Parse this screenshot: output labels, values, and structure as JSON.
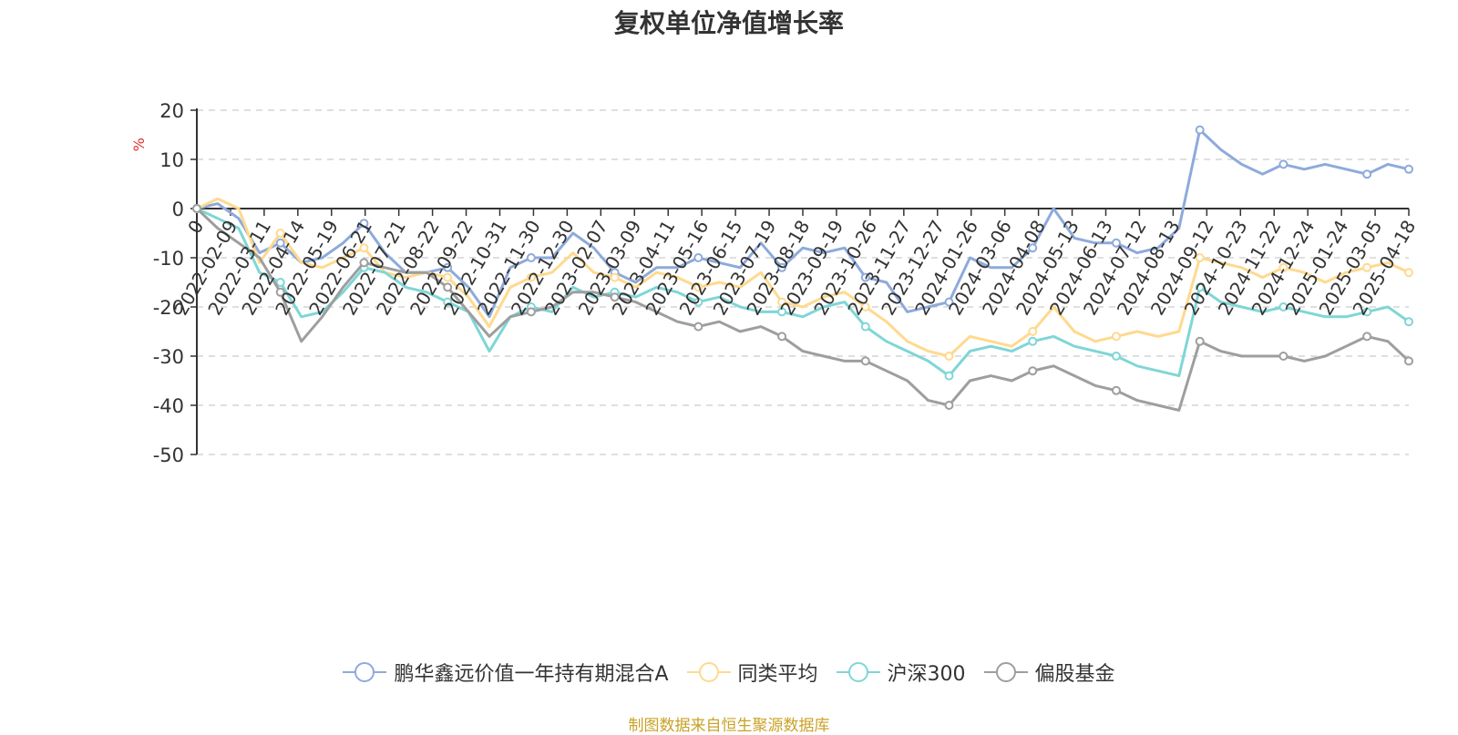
{
  "chart_data": {
    "type": "line",
    "title": "复权单位净值增长率",
    "ylabel": "%",
    "ylim": [
      -50,
      20
    ],
    "y_ticks": [
      "20",
      "10",
      "0",
      "-10",
      "-20",
      "-30",
      "-40",
      "-50"
    ],
    "x_tick_labels": [
      "0",
      "2022-02-09",
      "2022-03-11",
      "2022-04-14",
      "2022-05-19",
      "2022-06-21",
      "2022-07-21",
      "2022-08-22",
      "2022-09-22",
      "2022-10-31",
      "2022-11-30",
      "2022-12-30",
      "2023-02-07",
      "2023-03-09",
      "2023-04-11",
      "2023-05-16",
      "2023-06-15",
      "2023-07-19",
      "2023-08-18",
      "2023-09-19",
      "2023-10-26",
      "2023-11-27",
      "2023-12-27",
      "2024-01-26",
      "2024-03-06",
      "2024-04-08",
      "2024-05-13",
      "2024-06-13",
      "2024-07-12",
      "2024-08-13",
      "2024-09-12",
      "2024-10-23",
      "2024-11-22",
      "2024-12-24",
      "2025-01-24",
      "2025-03-05",
      "2025-04-18"
    ],
    "grid": true,
    "legend_position": "bottom",
    "series": [
      {
        "name": "鹏华鑫远价值一年持有期混合A",
        "color": "#8eaadb",
        "values": [
          0,
          1,
          -2,
          -9,
          -7,
          -11,
          -10,
          -7,
          -3,
          -9,
          -13,
          -13,
          -12,
          -16,
          -22,
          -12,
          -10,
          -10,
          -5,
          -8,
          -13,
          -15,
          -12,
          -12,
          -10,
          -11,
          -12,
          -7,
          -12,
          -8,
          -9,
          -8,
          -14,
          -15,
          -21,
          -20,
          -19,
          -10,
          -12,
          -12,
          -8,
          0,
          -6,
          -7,
          -7,
          -9,
          -8,
          -4,
          16,
          12,
          9,
          7,
          9,
          8,
          9,
          8,
          7,
          9,
          8
        ]
      },
      {
        "name": "同类平均",
        "color": "#ffd98e",
        "values": [
          0,
          2,
          0,
          -11,
          -5,
          -11,
          -12,
          -10,
          -8,
          -13,
          -14,
          -13,
          -14,
          -18,
          -24,
          -16,
          -14,
          -13,
          -9,
          -13,
          -14,
          -16,
          -13,
          -14,
          -16,
          -15,
          -16,
          -13,
          -19,
          -20,
          -18,
          -17,
          -20,
          -23,
          -27,
          -29,
          -30,
          -26,
          -27,
          -28,
          -25,
          -20,
          -25,
          -27,
          -26,
          -25,
          -26,
          -25,
          -10,
          -11,
          -12,
          -14,
          -12,
          -13,
          -15,
          -13,
          -12,
          -11,
          -13
        ]
      },
      {
        "name": "沪深300",
        "color": "#7fd6d6",
        "values": [
          0,
          -2,
          -4,
          -13,
          -15,
          -22,
          -21,
          -17,
          -12,
          -13,
          -16,
          -17,
          -19,
          -21,
          -29,
          -22,
          -20,
          -21,
          -16,
          -18,
          -17,
          -18,
          -16,
          -17,
          -19,
          -18,
          -20,
          -21,
          -21,
          -22,
          -20,
          -19,
          -24,
          -27,
          -29,
          -31,
          -34,
          -29,
          -28,
          -29,
          -27,
          -26,
          -28,
          -29,
          -30,
          -32,
          -33,
          -34,
          -16,
          -19,
          -20,
          -21,
          -20,
          -21,
          -22,
          -22,
          -21,
          -20,
          -23
        ]
      },
      {
        "name": "偏股基金",
        "color": "#9e9e9e",
        "values": [
          0,
          -4,
          -7,
          -10,
          -17,
          -27,
          -22,
          -16,
          -11,
          -12,
          -13,
          -13,
          -16,
          -21,
          -26,
          -22,
          -21,
          -20,
          -17,
          -17,
          -18,
          -19,
          -21,
          -23,
          -24,
          -23,
          -25,
          -24,
          -26,
          -29,
          -30,
          -31,
          -31,
          -33,
          -35,
          -39,
          -40,
          -35,
          -34,
          -35,
          -33,
          -32,
          -34,
          -36,
          -37,
          -39,
          -40,
          -41,
          -27,
          -29,
          -30,
          -30,
          -30,
          -31,
          -30,
          -28,
          -26,
          -27,
          -31
        ]
      }
    ]
  },
  "source_note": "制图数据来自恒生聚源数据库"
}
